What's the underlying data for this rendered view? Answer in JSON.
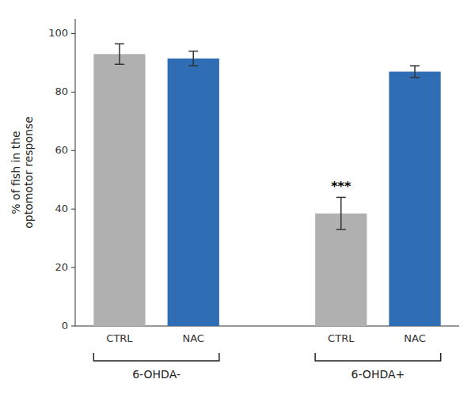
{
  "chart_data": {
    "type": "bar",
    "categories": [
      "CTRL",
      "NAC",
      "CTRL",
      "NAC"
    ],
    "values": [
      93.0,
      91.5,
      38.5,
      87.0
    ],
    "errors": [
      3.5,
      2.5,
      5.5,
      2.0
    ],
    "colors": [
      "#b0b0b0",
      "#2f6db5",
      "#b0b0b0",
      "#2f6db5"
    ],
    "groups": [
      "6-OHDA-",
      "6-OHDA+"
    ],
    "ylabel": "% of fish in the\noptomotor response",
    "ylim": [
      0,
      105
    ],
    "yticks": [
      0,
      20,
      40,
      60,
      80,
      100
    ],
    "grid": false,
    "annotations": [
      {
        "text": "***",
        "index": 2
      }
    ]
  }
}
